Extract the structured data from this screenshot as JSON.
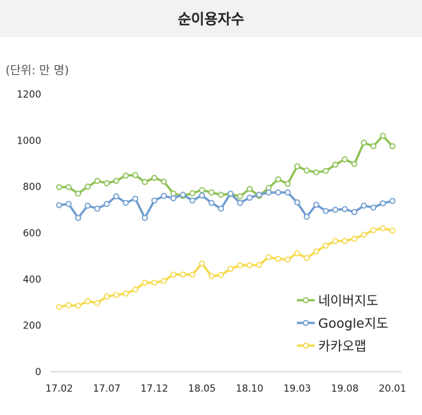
{
  "chart_data": {
    "type": "line",
    "title": "순이용자수",
    "unit_label": "(단위: 만 명)",
    "ylim": [
      0,
      1200
    ],
    "yticks": [
      0,
      200,
      400,
      600,
      800,
      1000,
      1200
    ],
    "x_tick_labels": [
      "17.02",
      "17.07",
      "17.12",
      "18.05",
      "18.10",
      "19.03",
      "19.08",
      "20.01"
    ],
    "x_tick_index": [
      0,
      5,
      10,
      15,
      20,
      25,
      30,
      35
    ],
    "legend_position": "bottom-right",
    "series": [
      {
        "name": "네이버지도",
        "color": "#8dc153",
        "values": [
          798,
          798,
          770,
          800,
          825,
          815,
          825,
          848,
          850,
          820,
          838,
          822,
          770,
          760,
          772,
          785,
          775,
          765,
          768,
          758,
          790,
          760,
          795,
          832,
          812,
          888,
          870,
          862,
          868,
          895,
          918,
          898,
          990,
          975,
          1020,
          975
        ]
      },
      {
        "name": "Google지도",
        "color": "#6d9bd0",
        "values": [
          720,
          725,
          665,
          718,
          705,
          725,
          758,
          730,
          748,
          665,
          740,
          760,
          750,
          765,
          740,
          762,
          730,
          705,
          770,
          730,
          752,
          765,
          775,
          775,
          775,
          732,
          670,
          722,
          695,
          700,
          703,
          690,
          718,
          710,
          728,
          738
        ]
      },
      {
        "name": "카카오맵",
        "color": "#f5d94a",
        "values": [
          280,
          288,
          285,
          305,
          297,
          325,
          332,
          338,
          355,
          385,
          385,
          392,
          420,
          420,
          420,
          468,
          413,
          418,
          445,
          460,
          460,
          462,
          495,
          488,
          485,
          512,
          492,
          520,
          545,
          565,
          565,
          575,
          592,
          612,
          620,
          610
        ]
      }
    ]
  }
}
